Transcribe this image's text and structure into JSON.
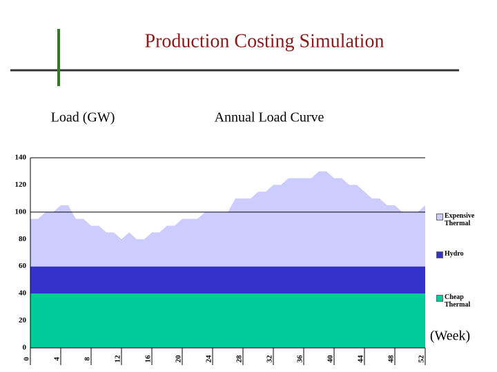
{
  "title": "Production Costing Simulation",
  "chart_data": {
    "type": "stacked_area",
    "title": "Annual Load Curve",
    "y_label": "Load (GW)",
    "x_label": "(Week)",
    "x": [
      0,
      1,
      2,
      3,
      4,
      5,
      6,
      7,
      8,
      9,
      10,
      11,
      12,
      13,
      14,
      15,
      16,
      17,
      18,
      19,
      20,
      21,
      22,
      23,
      24,
      25,
      26,
      27,
      28,
      29,
      30,
      31,
      32,
      33,
      34,
      35,
      36,
      37,
      38,
      39,
      40,
      41,
      42,
      43,
      44,
      45,
      46,
      47,
      48,
      49,
      50,
      51,
      52
    ],
    "series": [
      {
        "name": "Cheap Thermal",
        "color": "#00cc99",
        "values": [
          40,
          40,
          40,
          40,
          40,
          40,
          40,
          40,
          40,
          40,
          40,
          40,
          40,
          40,
          40,
          40,
          40,
          40,
          40,
          40,
          40,
          40,
          40,
          40,
          40,
          40,
          40,
          40,
          40,
          40,
          40,
          40,
          40,
          40,
          40,
          40,
          40,
          40,
          40,
          40,
          40,
          40,
          40,
          40,
          40,
          40,
          40,
          40,
          40,
          40,
          40,
          40,
          40
        ]
      },
      {
        "name": "Hydro",
        "color": "#3333cc",
        "values": [
          20,
          20,
          20,
          20,
          20,
          20,
          20,
          20,
          20,
          20,
          20,
          20,
          20,
          20,
          20,
          20,
          20,
          20,
          20,
          20,
          20,
          20,
          20,
          20,
          20,
          20,
          20,
          20,
          20,
          20,
          20,
          20,
          20,
          20,
          20,
          20,
          20,
          20,
          20,
          20,
          20,
          20,
          20,
          20,
          20,
          20,
          20,
          20,
          20,
          20,
          20,
          20,
          20
        ]
      },
      {
        "name": "Expensive Thermal",
        "color": "#ccccff",
        "values": [
          35,
          35,
          40,
          40,
          45,
          45,
          35,
          35,
          30,
          30,
          25,
          25,
          20,
          25,
          20,
          20,
          25,
          25,
          30,
          30,
          35,
          35,
          35,
          40,
          40,
          40,
          40,
          50,
          50,
          50,
          55,
          55,
          60,
          60,
          65,
          65,
          65,
          65,
          70,
          70,
          65,
          65,
          60,
          60,
          55,
          50,
          50,
          45,
          45,
          40,
          40,
          40,
          45
        ]
      }
    ],
    "xlim": [
      0,
      52
    ],
    "xticks": [
      0,
      4,
      8,
      12,
      16,
      20,
      24,
      28,
      32,
      36,
      40,
      44,
      48,
      52
    ],
    "ylim": [
      0,
      140
    ],
    "yticks": [
      0,
      20,
      40,
      60,
      80,
      100,
      120,
      140
    ],
    "grid_values": [
      100,
      140
    ]
  }
}
